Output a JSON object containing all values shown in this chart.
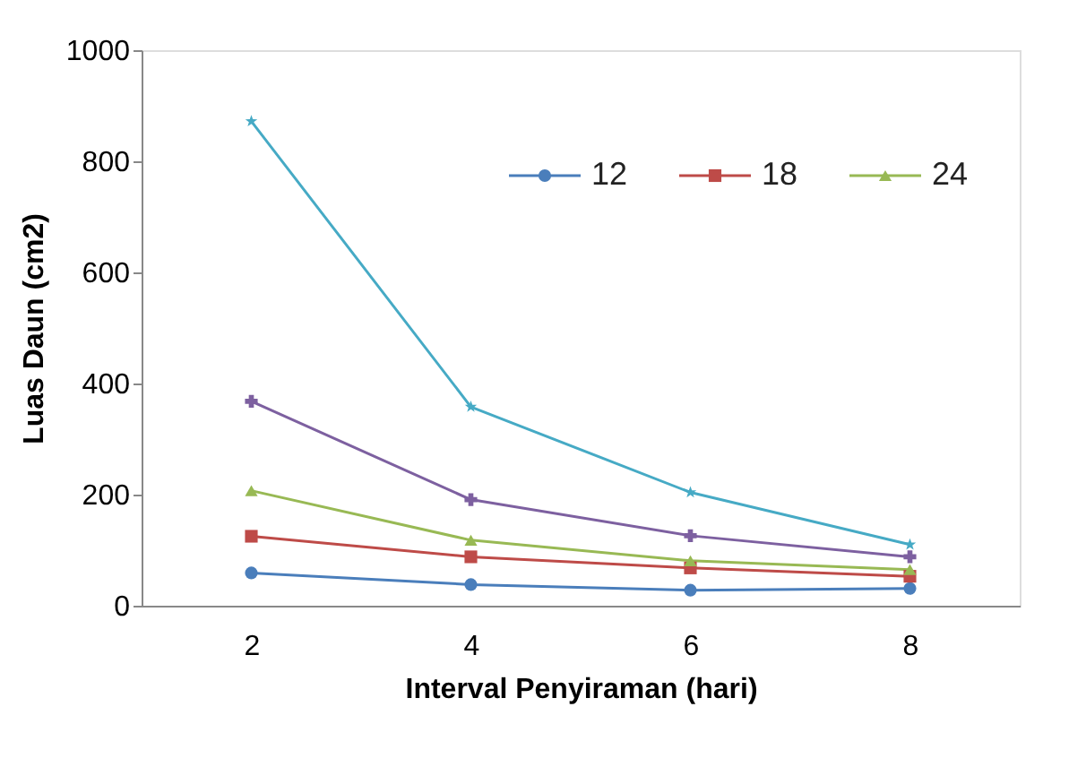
{
  "chart_data": {
    "type": "line",
    "xlabel": "Interval Penyiraman (hari)",
    "ylabel": "Luas Daun (cm2)",
    "categories": [
      "2",
      "4",
      "6",
      "8"
    ],
    "ylim": [
      0,
      1000
    ],
    "yticks": [
      0,
      200,
      400,
      600,
      800,
      1000
    ],
    "grid": false,
    "legend": "top right",
    "series": [
      {
        "name": "12",
        "color": "#4a7ebb",
        "marker": "circle",
        "values": [
          59,
          38,
          28,
          31
        ]
      },
      {
        "name": "18",
        "color": "#be4b48",
        "marker": "square",
        "values": [
          125,
          88,
          68,
          53
        ]
      },
      {
        "name": "24",
        "color": "#98b954",
        "marker": "triangle",
        "values": [
          207,
          118,
          81,
          65
        ]
      },
      {
        "color": "#7d60a0",
        "marker": "cross",
        "values": [
          368,
          191,
          126,
          88
        ]
      },
      {
        "color": "#46aac5",
        "marker": "star",
        "values": [
          872,
          358,
          204,
          110
        ]
      }
    ]
  }
}
